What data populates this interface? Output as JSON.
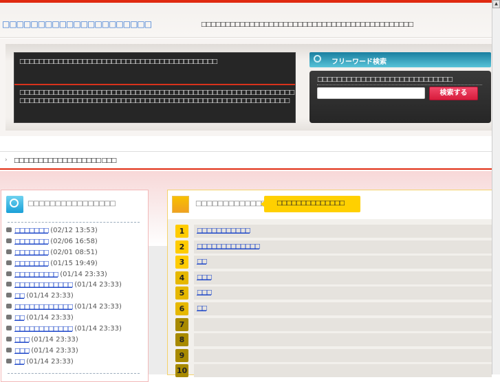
{
  "header": {
    "title": "□□□□□□□□□□□□□□□□□□□□□",
    "tagline": "□□□□□□□□□□□□□□□□□□□□□□□□□□□□□□□□□□□□□□□□□□□□"
  },
  "hero": {
    "heading": "□□□□□□□□□□□□□□□□□□□□□□□□□□□□□□□□□□□□□□□□□",
    "body": "□□□□□□□□□□□□□□□□□□□□□□□□□□□□□□□□□□□□□□□□□□□□□□□□□□□□□□□□□□□□□□□□□□□□□□□□□□□□□□□□□□□□□□□□□□□□□□□□□□□□□□□□□□□□□□□□□"
  },
  "search": {
    "title": "フリーワード検索",
    "label": "□□□□□□□□□□□□□□□□□□□□□□□□□□□□",
    "input_value": "",
    "button": "検索する"
  },
  "breadcrumb": {
    "chevron": "›",
    "text": "□□□□□□□□□□□□□□□□□□ □□□"
  },
  "recent": {
    "title": "□□□□□□□□□□□□□□□□",
    "items": [
      {
        "label": "□□□□□□□",
        "date": "(02/12 13:53)"
      },
      {
        "label": "□□□□□□□",
        "date": "(02/06 16:58)"
      },
      {
        "label": "□□□□□□□",
        "date": "(02/01 08:51)"
      },
      {
        "label": "□□□□□□□",
        "date": "(01/15 19:49)"
      },
      {
        "label": "□□□□□□□□□",
        "date": "(01/14 23:33)"
      },
      {
        "label": "□□□□□□□□□□□□",
        "date": "(01/14 23:33)"
      },
      {
        "label": "□□",
        "date": "(01/14 23:33)"
      },
      {
        "label": "□□□□□□□□□□□□",
        "date": "(01/14 23:33)"
      },
      {
        "label": "□□",
        "date": "(01/14 23:33)"
      },
      {
        "label": "□□□□□□□□□□□□",
        "date": "(01/14 23:33)"
      },
      {
        "label": "□□□",
        "date": "(01/14 23:33)"
      },
      {
        "label": "□□□",
        "date": "(01/14 23:33)"
      },
      {
        "label": "□□",
        "date": "(01/14 23:33)"
      }
    ]
  },
  "ranking": {
    "title": "□□□□□□□□□□□□□□□□",
    "callout": "□□□□□□□□□□□□□□",
    "colors": {
      "top": "#ffcc00",
      "mid": "#e6b800",
      "low": "#a88a00"
    },
    "items": [
      {
        "rank": "1",
        "label": "□□□□□□□□□□□"
      },
      {
        "rank": "2",
        "label": "□□□□□□□□□□□□□"
      },
      {
        "rank": "3",
        "label": "□□"
      },
      {
        "rank": "4",
        "label": "□□□"
      },
      {
        "rank": "5",
        "label": "□□□"
      },
      {
        "rank": "6",
        "label": "□□"
      },
      {
        "rank": "7",
        "label": ""
      },
      {
        "rank": "8",
        "label": ""
      },
      {
        "rank": "9",
        "label": ""
      },
      {
        "rank": "10",
        "label": ""
      }
    ]
  }
}
